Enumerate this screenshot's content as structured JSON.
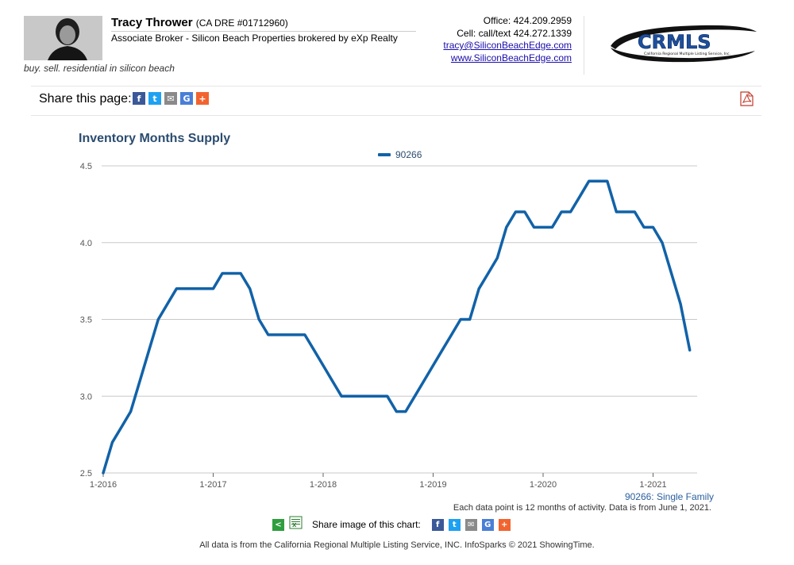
{
  "agent": {
    "name": "Tracy Thrower",
    "dre": "(CA DRE #01712960)",
    "title": "Associate Broker - Silicon Beach Properties brokered by eXp Realty",
    "tagline": "buy. sell. residential in silicon beach",
    "office": "Office: 424.209.2959",
    "cell": "Cell: call/text 424.272.1339",
    "email": "tracy@SiliconBeachEdge.com",
    "website": "www.SiliconBeachEdge.com"
  },
  "logo": {
    "text": "CRMLS",
    "subtext": "California Regional Multiple Listing Service, Inc."
  },
  "share": {
    "label": "Share this page:",
    "icons": [
      "facebook-icon",
      "twitter-icon",
      "email-icon",
      "google-icon",
      "plus-icon"
    ]
  },
  "colors": {
    "series": "#1162a8",
    "title": "#2b4c6f",
    "grid": "#c8c8c8"
  },
  "chart_data": {
    "type": "line",
    "title": "Inventory Months Supply",
    "xlabel": "",
    "ylabel": "",
    "ylim": [
      2.5,
      4.5
    ],
    "xlim": [
      "1-2016",
      "5-2021"
    ],
    "yticks": [
      "2.5",
      "3.0",
      "3.5",
      "4.0",
      "4.5"
    ],
    "xticks": [
      "1-2016",
      "1-2017",
      "1-2018",
      "1-2019",
      "1-2020",
      "1-2021"
    ],
    "grid": true,
    "legend_position": "top-center",
    "x": [
      "1-2016",
      "2-2016",
      "3-2016",
      "4-2016",
      "5-2016",
      "6-2016",
      "7-2016",
      "8-2016",
      "9-2016",
      "10-2016",
      "11-2016",
      "12-2016",
      "1-2017",
      "2-2017",
      "3-2017",
      "4-2017",
      "5-2017",
      "6-2017",
      "7-2017",
      "8-2017",
      "9-2017",
      "10-2017",
      "11-2017",
      "12-2017",
      "1-2018",
      "2-2018",
      "3-2018",
      "4-2018",
      "5-2018",
      "6-2018",
      "7-2018",
      "8-2018",
      "9-2018",
      "10-2018",
      "11-2018",
      "12-2018",
      "1-2019",
      "2-2019",
      "3-2019",
      "4-2019",
      "5-2019",
      "6-2019",
      "7-2019",
      "8-2019",
      "9-2019",
      "10-2019",
      "11-2019",
      "12-2019",
      "1-2020",
      "2-2020",
      "3-2020",
      "4-2020",
      "5-2020",
      "6-2020",
      "7-2020",
      "8-2020",
      "9-2020",
      "10-2020",
      "11-2020",
      "12-2020",
      "1-2021",
      "2-2021",
      "3-2021",
      "4-2021",
      "5-2021"
    ],
    "series": [
      {
        "name": "90266",
        "values": [
          2.5,
          2.7,
          2.8,
          2.9,
          3.1,
          3.3,
          3.5,
          3.6,
          3.7,
          3.7,
          3.7,
          3.7,
          3.7,
          3.8,
          3.8,
          3.8,
          3.7,
          3.5,
          3.4,
          3.4,
          3.4,
          3.4,
          3.4,
          3.3,
          3.2,
          3.1,
          3.0,
          3.0,
          3.0,
          3.0,
          3.0,
          3.0,
          2.9,
          2.9,
          3.0,
          3.1,
          3.2,
          3.3,
          3.4,
          3.5,
          3.5,
          3.7,
          3.8,
          3.9,
          4.1,
          4.2,
          4.2,
          4.1,
          4.1,
          4.1,
          4.2,
          4.2,
          4.3,
          4.4,
          4.4,
          4.4,
          4.2,
          4.2,
          4.2,
          4.1,
          4.1,
          4.0,
          3.8,
          3.6,
          3.3
        ]
      }
    ]
  },
  "footnotes": {
    "series_label": "90266: Single Family",
    "activity": "Each data point is 12 months of activity. Data is from June 1, 2021."
  },
  "share_image": {
    "label": "Share image of this chart:",
    "icons": [
      "facebook-icon",
      "twitter-icon",
      "email-icon",
      "google-icon",
      "plus-icon"
    ]
  },
  "copyright": "All data is from the California Regional Multiple Listing Service, INC. InfoSparks © 2021 ShowingTime."
}
